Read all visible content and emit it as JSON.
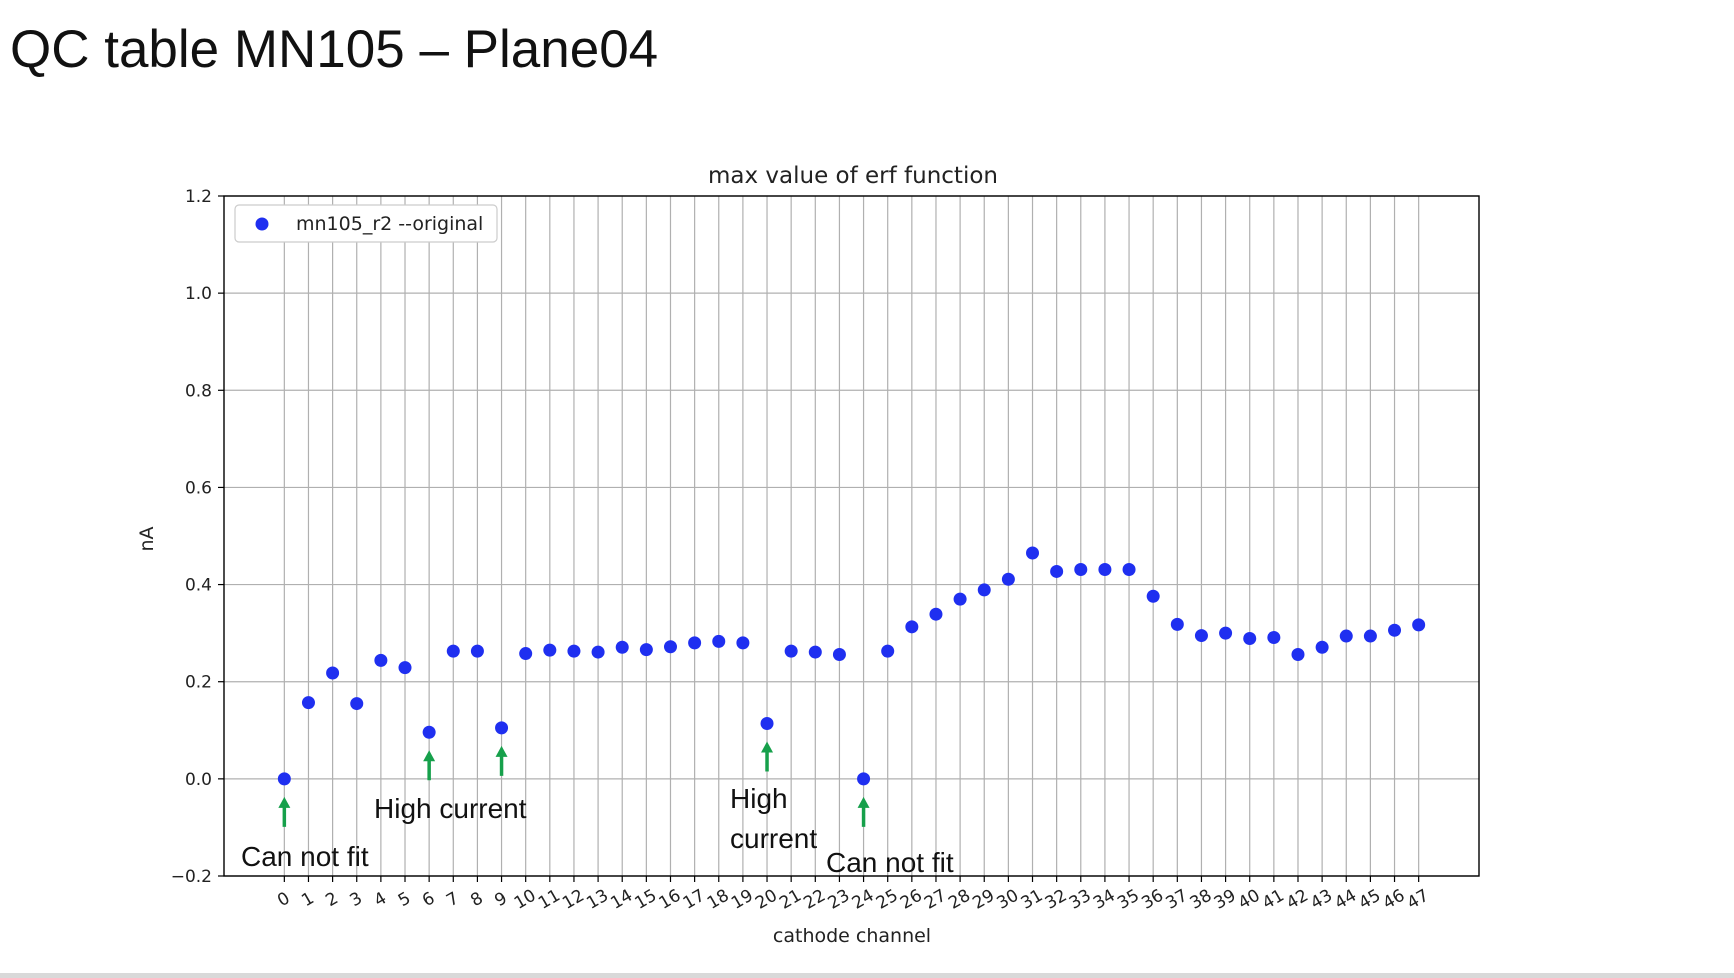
{
  "slide": {
    "title": "QC table MN105 – Plane04"
  },
  "chart_data": {
    "type": "scatter",
    "title": "max value of erf function",
    "xlabel": "cathode channel",
    "ylabel": "nA",
    "xlim": [
      -2.5,
      49.5
    ],
    "ylim": [
      -0.2,
      1.2
    ],
    "yticks": [
      -0.2,
      0.0,
      0.2,
      0.4,
      0.6,
      0.8,
      1.0,
      1.2
    ],
    "ytick_labels": [
      "−0.2",
      "0.0",
      "0.2",
      "0.4",
      "0.6",
      "0.8",
      "1.0",
      "1.2"
    ],
    "x": [
      0,
      1,
      2,
      3,
      4,
      5,
      6,
      7,
      8,
      9,
      10,
      11,
      12,
      13,
      14,
      15,
      16,
      17,
      18,
      19,
      20,
      21,
      22,
      23,
      24,
      25,
      26,
      27,
      28,
      29,
      30,
      31,
      32,
      33,
      34,
      35,
      36,
      37,
      38,
      39,
      40,
      41,
      42,
      43,
      44,
      45,
      46,
      47
    ],
    "xtick_labels": [
      "0",
      "1",
      "2",
      "3",
      "4",
      "5",
      "6",
      "7",
      "8",
      "9",
      "10",
      "11",
      "12",
      "13",
      "14",
      "15",
      "16",
      "17",
      "18",
      "19",
      "20",
      "21",
      "22",
      "23",
      "24",
      "25",
      "26",
      "27",
      "28",
      "29",
      "30",
      "31",
      "32",
      "33",
      "34",
      "35",
      "36",
      "37",
      "38",
      "39",
      "40",
      "41",
      "42",
      "43",
      "44",
      "45",
      "46",
      "47"
    ],
    "series": [
      {
        "name": "mn105_r2 --original",
        "color": "#1f2ff0",
        "values": [
          0.0,
          0.157,
          0.218,
          0.155,
          0.244,
          0.229,
          0.096,
          0.263,
          0.263,
          0.105,
          0.258,
          0.265,
          0.263,
          0.261,
          0.271,
          0.266,
          0.272,
          0.28,
          0.283,
          0.28,
          0.114,
          0.263,
          0.261,
          0.256,
          0.0,
          0.263,
          0.313,
          0.339,
          0.37,
          0.389,
          0.411,
          0.465,
          0.427,
          0.431,
          0.431,
          0.431,
          0.376,
          0.318,
          0.295,
          0.3,
          0.289,
          0.291,
          0.256,
          0.271,
          0.294,
          0.294,
          0.306,
          0.317
        ]
      }
    ],
    "grid": true,
    "legend_position": "top-left",
    "annotations": [
      {
        "text": "Can not fit",
        "x": 0,
        "y": 0.0,
        "label_position": "below"
      },
      {
        "text": "High current",
        "x": 6,
        "y": 0.096,
        "label_position": "below"
      },
      {
        "text": "High current",
        "x": 9,
        "y": 0.105,
        "label_position": "below"
      },
      {
        "text": "High\ncurrent",
        "x": 20,
        "y": 0.114,
        "label_position": "below"
      },
      {
        "text": "Can not fit",
        "x": 24,
        "y": 0.0,
        "label_position": "below"
      }
    ],
    "annotation_labels": [
      "Can not fit",
      "High current",
      "High",
      "current",
      "Can not fit"
    ],
    "annotation_color": "#16a04b"
  }
}
